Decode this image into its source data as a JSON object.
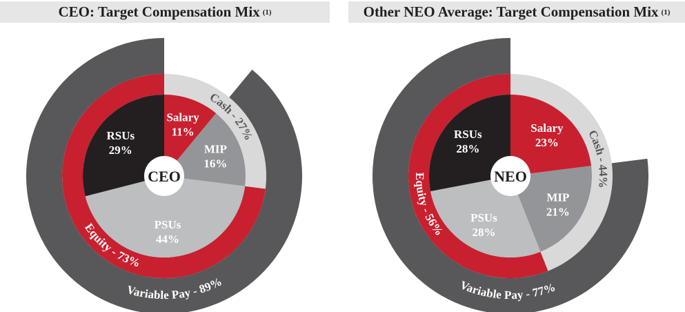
{
  "chart_data": [
    {
      "type": "pie",
      "title": "CEO: Target Compensation Mix",
      "title_note": "(1)",
      "center_label": "CEO",
      "slices": [
        {
          "label": "Salary",
          "value": 11,
          "color": "#c8202f"
        },
        {
          "label": "MIP",
          "value": 16,
          "color": "#939598"
        },
        {
          "label": "PSUs",
          "value": 44,
          "color": "#bcbec0"
        },
        {
          "label": "RSUs",
          "value": 29,
          "color": "#231f20"
        }
      ],
      "rings": [
        {
          "label": "Cash - 27%",
          "value": 27,
          "start": 0,
          "color": "#d9d9da",
          "text_color": "#58585a"
        },
        {
          "label": "Equity - 73%",
          "value": 73,
          "start": 27,
          "color": "#c8202f",
          "text_color": "#ffffff"
        },
        {
          "label": "Variable Pay - 89%",
          "value": 89,
          "start": 11,
          "color": "#58585a",
          "text_color": "#ffffff"
        }
      ]
    },
    {
      "type": "pie",
      "title": "Other NEO Average: Target Compensation Mix",
      "title_note": "(1)",
      "center_label": "NEO",
      "slices": [
        {
          "label": "Salary",
          "value": 23,
          "color": "#c8202f"
        },
        {
          "label": "MIP",
          "value": 21,
          "color": "#939598"
        },
        {
          "label": "PSUs",
          "value": 28,
          "color": "#bcbec0"
        },
        {
          "label": "RSUs",
          "value": 28,
          "color": "#231f20"
        }
      ],
      "rings": [
        {
          "label": "Cash - 44%",
          "value": 44,
          "start": 0,
          "color": "#d9d9da",
          "text_color": "#58585a"
        },
        {
          "label": "Equity - 56%",
          "value": 56,
          "start": 44,
          "color": "#c8202f",
          "text_color": "#ffffff"
        },
        {
          "label": "Variable Pay - 77%",
          "value": 77,
          "start": 23,
          "color": "#58585a",
          "text_color": "#ffffff"
        }
      ]
    }
  ]
}
